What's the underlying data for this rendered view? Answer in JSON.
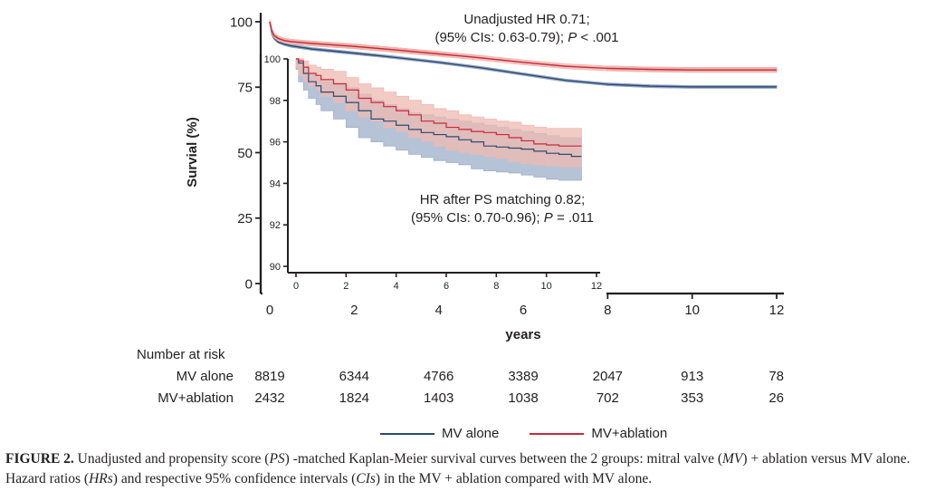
{
  "chart_data": [
    {
      "type": "line",
      "subtype": "kaplan-meier",
      "panel": "main",
      "title": "",
      "xlabel": "years",
      "ylabel": "Survial (%)",
      "xlim": [
        0,
        12
      ],
      "ylim": [
        0,
        100
      ],
      "xticks": [
        "0",
        "2",
        "4",
        "6",
        "8",
        "10",
        "12"
      ],
      "yticks": [
        "0",
        "25",
        "50",
        "75",
        "100"
      ],
      "grid": false,
      "annotation": {
        "line1": "Unadjusted HR 0.71;",
        "line2_prefix": "(95% CIs: 0.63-0.79); ",
        "line2_p": "P",
        "line2_suffix": " < .001"
      },
      "series": [
        {
          "name": "MV alone",
          "color": "#2c4a73",
          "band_color": "#8ea3c0",
          "x": [
            0,
            0.05,
            0.1,
            0.2,
            0.35,
            0.5,
            1,
            2,
            3,
            4,
            5,
            6,
            7,
            8,
            9,
            10,
            11,
            12
          ],
          "y": [
            100,
            95.5,
            93.8,
            92.3,
            91.4,
            90.8,
            89.6,
            88.0,
            86.3,
            84.5,
            82.4,
            80.0,
            77.6,
            76.1,
            75.4,
            75.1,
            75.1,
            75.1
          ],
          "ci_width": 0.5
        },
        {
          "name": "MV+ablation",
          "color": "#c8283c",
          "band_color": "#eeb3ab",
          "x": [
            0,
            0.05,
            0.1,
            0.2,
            0.35,
            0.5,
            1,
            2,
            3,
            4,
            5,
            6,
            7,
            8,
            9,
            10,
            11,
            12
          ],
          "y": [
            100,
            96.5,
            94.8,
            93.6,
            92.8,
            92.4,
            91.7,
            90.6,
            89.2,
            87.7,
            86.2,
            84.5,
            83.0,
            82.2,
            81.8,
            81.6,
            81.6,
            81.6
          ],
          "ci_width": 0.9
        }
      ]
    },
    {
      "type": "line",
      "subtype": "kaplan-meier",
      "panel": "inset",
      "title": "",
      "xlabel": "",
      "ylabel": "",
      "xlim": [
        0,
        12
      ],
      "ylim": [
        90,
        100
      ],
      "xticks": [
        "0",
        "2",
        "4",
        "6",
        "8",
        "10",
        "12"
      ],
      "yticks": [
        "90",
        "92",
        "94",
        "96",
        "98",
        "100"
      ],
      "grid": false,
      "annotation": {
        "line1": "HR after PS matching 0.82;",
        "line2_prefix": "(95% CIs: 0.70-0.96); ",
        "line2_p": "P",
        "line2_suffix": " = .011"
      },
      "series": [
        {
          "name": "MV alone",
          "color": "#2c4a73",
          "band_color": "#9eafc8",
          "x": [
            0,
            0.1,
            0.3,
            0.5,
            0.8,
            1.0,
            1.5,
            2.0,
            2.5,
            3.0,
            3.5,
            4.0,
            4.5,
            5.0,
            5.5,
            6.0,
            6.5,
            7.0,
            7.5,
            8.0,
            8.5,
            9.0,
            9.5,
            10.0,
            10.5,
            11.0,
            11.4
          ],
          "y": [
            100,
            99.8,
            99.3,
            98.9,
            98.7,
            98.4,
            98.2,
            97.9,
            97.5,
            97.1,
            97.0,
            96.8,
            96.6,
            96.45,
            96.35,
            96.25,
            96.1,
            96.0,
            95.8,
            95.75,
            95.7,
            95.65,
            95.55,
            95.45,
            95.4,
            95.3,
            95.3
          ],
          "lower": [
            100,
            99.5,
            98.9,
            98.5,
            98.1,
            97.8,
            97.5,
            97.1,
            96.7,
            96.2,
            96.0,
            95.8,
            95.6,
            95.4,
            95.25,
            95.1,
            95.0,
            94.9,
            94.7,
            94.6,
            94.55,
            94.5,
            94.4,
            94.3,
            94.2,
            94.15,
            94.15
          ],
          "upper": [
            100,
            99.95,
            99.6,
            99.3,
            99.1,
            98.9,
            98.8,
            98.6,
            98.3,
            98.0,
            97.8,
            97.6,
            97.4,
            97.3,
            97.2,
            97.1,
            97.0,
            96.9,
            96.8,
            96.7,
            96.6,
            96.5,
            96.4,
            96.3,
            96.2,
            96.2,
            96.2
          ]
        },
        {
          "name": "MV+ablation",
          "color": "#c8283c",
          "band_color": "#eeb9b1",
          "x": [
            0,
            0.1,
            0.3,
            0.5,
            0.8,
            1.0,
            1.5,
            2.0,
            2.5,
            3.0,
            3.5,
            4.0,
            4.5,
            5.0,
            5.5,
            6.0,
            6.5,
            7.0,
            7.5,
            8.0,
            8.5,
            9.0,
            9.5,
            10.0,
            10.5,
            11.0,
            11.4
          ],
          "y": [
            100,
            99.9,
            99.6,
            99.3,
            99.2,
            99.0,
            98.8,
            98.5,
            98.1,
            97.9,
            97.7,
            97.5,
            97.3,
            97.0,
            96.9,
            96.7,
            96.6,
            96.5,
            96.45,
            96.35,
            96.2,
            96.05,
            95.9,
            95.85,
            95.8,
            95.8,
            95.8
          ],
          "lower": [
            100,
            99.6,
            99.2,
            98.9,
            98.7,
            98.5,
            98.2,
            97.9,
            97.5,
            97.2,
            97.0,
            96.7,
            96.5,
            96.2,
            96.05,
            95.8,
            95.6,
            95.5,
            95.4,
            95.3,
            95.2,
            95.05,
            94.95,
            94.9,
            94.85,
            94.8,
            94.8
          ],
          "upper": [
            100,
            100,
            99.9,
            99.7,
            99.6,
            99.5,
            99.4,
            99.1,
            98.8,
            98.6,
            98.4,
            98.2,
            98.0,
            97.8,
            97.6,
            97.5,
            97.3,
            97.2,
            97.1,
            97.0,
            96.95,
            96.8,
            96.7,
            96.65,
            96.65,
            96.65,
            96.65
          ]
        }
      ]
    }
  ],
  "number_at_risk": {
    "title": "Number at risk",
    "rows": [
      {
        "label": "MV alone",
        "values": [
          "8819",
          "6344",
          "4766",
          "3389",
          "2047",
          "913",
          "78"
        ]
      },
      {
        "label": "MV+ablation",
        "values": [
          "2432",
          "1824",
          "1403",
          "1038",
          "702",
          "353",
          "26"
        ]
      }
    ]
  },
  "legend": [
    {
      "label": "MV alone",
      "color": "#2c4a73"
    },
    {
      "label": "MV+ablation",
      "color": "#c8283c"
    }
  ],
  "caption": {
    "label": "FIGURE 2.",
    "segments": [
      {
        "text": " Unadjusted and propensity score (",
        "italic": false
      },
      {
        "text": "PS",
        "italic": true
      },
      {
        "text": ") -matched Kaplan-Meier survival curves between the 2 groups: mitral valve (",
        "italic": false
      },
      {
        "text": "MV",
        "italic": true
      },
      {
        "text": ") + ablation versus MV alone. Hazard ratios (",
        "italic": false
      },
      {
        "text": "HRs",
        "italic": true
      },
      {
        "text": ") and respective 95% confidence intervals (",
        "italic": false
      },
      {
        "text": "CIs",
        "italic": true
      },
      {
        "text": ") in the MV + ablation compared with MV alone.",
        "italic": false
      }
    ]
  }
}
